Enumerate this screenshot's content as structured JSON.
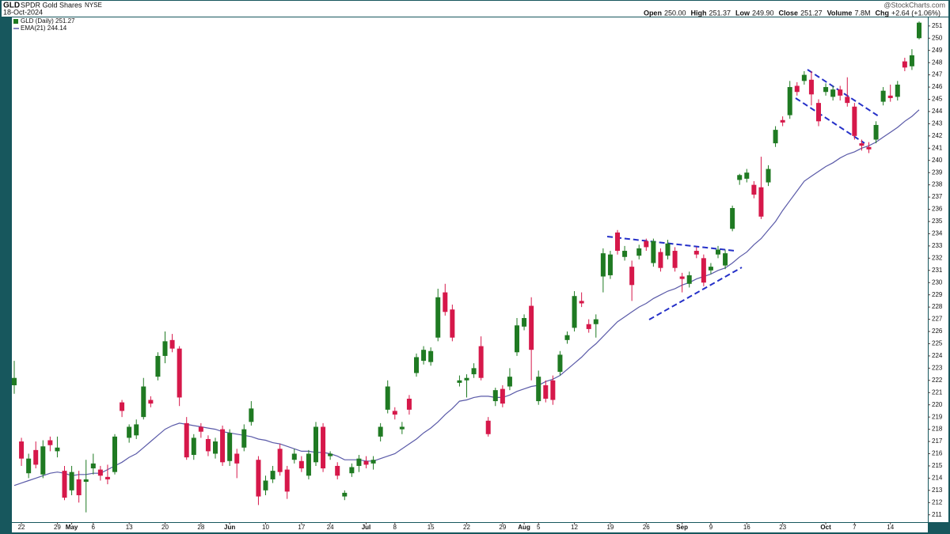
{
  "chart_data": {
    "type": "candlestick",
    "title": "GLD",
    "subtitle": "SPDR Gold Shares",
    "exchange": "NYSE",
    "date": "18-Oct-2024",
    "source": "@StockCharts.com",
    "quote": [
      {
        "label": "Open",
        "value": "250.00"
      },
      {
        "label": "High",
        "value": "251.37"
      },
      {
        "label": "Low",
        "value": "249.90"
      },
      {
        "label": "Close",
        "value": "251.27"
      },
      {
        "label": "Volume",
        "value": "7.8M"
      },
      {
        "label": "Chg",
        "value": "+2.64 (+1.06%)"
      }
    ],
    "categories": [
      null,
      "22",
      null,
      null,
      null,
      null,
      "29",
      null,
      "May",
      null,
      null,
      "6",
      null,
      null,
      null,
      null,
      "13",
      null,
      null,
      null,
      null,
      "20",
      null,
      null,
      null,
      null,
      "28",
      null,
      null,
      null,
      "Jun",
      null,
      null,
      null,
      null,
      "10",
      null,
      null,
      null,
      null,
      "17",
      null,
      null,
      null,
      "24",
      null,
      null,
      null,
      null,
      "Jul",
      null,
      null,
      null,
      "8",
      null,
      null,
      null,
      null,
      "15",
      null,
      null,
      null,
      null,
      "22",
      null,
      null,
      null,
      null,
      "29",
      null,
      null,
      "Aug",
      null,
      "5",
      null,
      null,
      null,
      null,
      "12",
      null,
      null,
      null,
      null,
      "19",
      null,
      null,
      null,
      null,
      "26",
      null,
      null,
      null,
      null,
      "Sep",
      null,
      null,
      null,
      "9",
      null,
      null,
      null,
      null,
      "16",
      null,
      null,
      null,
      null,
      "23",
      null,
      null,
      null,
      null,
      null,
      "Oct",
      null,
      null,
      null,
      "7",
      null,
      null,
      null,
      null,
      "14",
      null,
      null,
      null,
      null
    ],
    "series": [
      {
        "name": "GLD (Daily) 251.27",
        "type": "candlestick",
        "up_color": "#1f7a22",
        "down_color": "#d6184a",
        "open": [
          221.6,
          217.0,
          214.4,
          216.3,
          214.3,
          217.1,
          216.2,
          214.6,
          213.0,
          213.9,
          213.7,
          214.8,
          214.7,
          214.1,
          214.5,
          220.2,
          217.3,
          217.5,
          219.0,
          220.4,
          222.3,
          224.0,
          225.3,
          224.6,
          218.5,
          215.9,
          218.2,
          217.2,
          216.0,
          218.0,
          215.4,
          216.0,
          216.5,
          218.6,
          215.5,
          213.0,
          213.9,
          216.4,
          214.7,
          215.5,
          215.4,
          214.2,
          215.3,
          218.2,
          215.8,
          215.0,
          212.5,
          214.4,
          215.0,
          215.4,
          215.2,
          217.4,
          219.6,
          219.5,
          218.0,
          220.5,
          222.6,
          223.6,
          223.5,
          225.5,
          229.2,
          227.8,
          221.8,
          222.0,
          222.5,
          224.8,
          218.7,
          220.3,
          221.3,
          221.5,
          224.3,
          226.4,
          228.1,
          220.3,
          221.6,
          222.0,
          222.7,
          225.3,
          226.3,
          228.5,
          226.6,
          226.6,
          230.5,
          230.6,
          234.1,
          232.1,
          231.3,
          232.2,
          233.4,
          231.6,
          232.5,
          232.2,
          232.6,
          230.5,
          229.9,
          232.6,
          232.0,
          231.0,
          232.3,
          231.4,
          234.4,
          238.4,
          238.5,
          238.0,
          237.8,
          238.2,
          241.4,
          243.3,
          243.7,
          246.1,
          246.5,
          246.6,
          244.7,
          245.6,
          245.2,
          245.8,
          245.2,
          244.4,
          241.4,
          241.1,
          241.7,
          244.8,
          245.3,
          245.2,
          248.1,
          247.7,
          250.0
        ],
        "high": [
          223.6,
          217.3,
          216.0,
          217.0,
          217.1,
          217.4,
          217.4,
          215.0,
          215.0,
          214.6,
          215.5,
          216.0,
          215.0,
          215.1,
          217.6,
          220.4,
          218.4,
          218.8,
          222.2,
          220.7,
          224.3,
          226.0,
          225.8,
          224.8,
          219.0,
          217.6,
          218.5,
          217.5,
          217.3,
          218.3,
          218.0,
          216.4,
          218.4,
          220.3,
          215.8,
          214.2,
          215.0,
          216.8,
          215.0,
          216.4,
          215.8,
          216.3,
          218.6,
          218.5,
          216.2,
          215.3,
          213.0,
          215.2,
          215.9,
          215.8,
          215.8,
          218.5,
          222.0,
          219.8,
          218.6,
          220.8,
          224.2,
          224.8,
          224.7,
          229.5,
          229.9,
          228.2,
          222.4,
          222.5,
          223.4,
          225.6,
          219.0,
          221.4,
          221.6,
          223.0,
          227.1,
          227.4,
          228.8,
          222.8,
          222.0,
          222.4,
          224.4,
          226.0,
          229.3,
          229.2,
          227.0,
          227.4,
          232.8,
          232.6,
          234.3,
          233.0,
          231.8,
          233.1,
          233.6,
          233.6,
          232.8,
          233.5,
          232.9,
          230.8,
          230.9,
          232.9,
          232.3,
          231.6,
          233.0,
          232.7,
          236.3,
          238.9,
          239.3,
          238.3,
          240.3,
          239.6,
          242.8,
          243.6,
          246.5,
          246.4,
          247.3,
          247.3,
          245.0,
          246.3,
          246.1,
          246.1,
          246.8,
          244.7,
          241.7,
          241.5,
          243.2,
          246.0,
          246.2,
          246.5,
          248.4,
          249.1,
          251.37
        ],
        "low": [
          220.9,
          215.0,
          214.0,
          214.8,
          214.0,
          216.2,
          215.7,
          212.2,
          212.6,
          212.0,
          211.2,
          214.3,
          213.8,
          213.5,
          214.3,
          219.0,
          216.9,
          217.2,
          218.8,
          219.8,
          222.0,
          223.4,
          224.3,
          219.9,
          215.5,
          215.5,
          217.3,
          215.8,
          215.6,
          215.0,
          215.0,
          214.0,
          216.2,
          218.3,
          211.8,
          212.6,
          213.6,
          214.2,
          212.3,
          215.2,
          214.5,
          213.9,
          215.0,
          214.5,
          215.5,
          213.9,
          212.2,
          214.1,
          214.5,
          214.8,
          214.7,
          217.0,
          219.3,
          218.8,
          217.6,
          219.2,
          222.3,
          223.3,
          223.2,
          225.2,
          227.3,
          225.2,
          221.5,
          220.6,
          222.2,
          222.0,
          217.4,
          219.9,
          219.8,
          221.2,
          224.0,
          226.1,
          222.0,
          220.0,
          220.2,
          220.0,
          222.4,
          225.0,
          226.0,
          228.0,
          225.9,
          225.5,
          229.2,
          230.3,
          232.3,
          231.8,
          228.5,
          231.9,
          232.6,
          231.3,
          230.9,
          231.9,
          230.9,
          229.2,
          229.6,
          232.0,
          229.7,
          230.7,
          232.0,
          231.1,
          234.2,
          238.0,
          238.2,
          236.9,
          235.2,
          237.9,
          241.1,
          242.8,
          243.4,
          245.3,
          246.2,
          244.5,
          242.8,
          245.3,
          244.9,
          244.9,
          244.4,
          241.7,
          240.8,
          240.6,
          241.4,
          244.5,
          244.8,
          244.9,
          247.3,
          247.4,
          249.9
        ],
        "close": [
          222.2,
          215.6,
          215.6,
          215.1,
          216.6,
          216.7,
          216.5,
          212.4,
          214.5,
          212.6,
          213.9,
          215.2,
          214.2,
          213.9,
          217.4,
          219.5,
          218.2,
          218.4,
          221.5,
          220.1,
          224.0,
          225.2,
          224.6,
          220.6,
          215.7,
          217.3,
          217.8,
          216.2,
          217.0,
          215.3,
          217.7,
          215.2,
          218.0,
          219.7,
          212.5,
          213.8,
          214.6,
          214.5,
          212.9,
          216.0,
          214.8,
          216.0,
          218.2,
          214.8,
          216.0,
          214.2,
          212.8,
          214.9,
          215.6,
          215.1,
          215.5,
          218.2,
          221.5,
          219.2,
          218.2,
          219.6,
          223.9,
          224.5,
          224.4,
          228.8,
          227.6,
          225.5,
          222.0,
          222.2,
          223.0,
          222.2,
          217.6,
          221.2,
          220.1,
          222.3,
          226.5,
          227.1,
          224.5,
          222.3,
          220.5,
          220.4,
          224.1,
          225.7,
          228.9,
          228.3,
          226.2,
          227.0,
          232.4,
          232.3,
          232.6,
          232.6,
          229.8,
          232.8,
          232.9,
          233.4,
          231.2,
          233.2,
          231.2,
          230.3,
          230.6,
          232.3,
          230.0,
          231.3,
          232.7,
          232.4,
          236.1,
          238.8,
          239.0,
          237.2,
          235.4,
          239.3,
          242.5,
          243.1,
          246.0,
          245.6,
          247.0,
          245.4,
          243.2,
          246.0,
          245.8,
          245.3,
          244.7,
          242.0,
          241.2,
          240.9,
          242.9,
          245.7,
          245.1,
          246.2,
          247.6,
          248.6,
          251.27
        ]
      },
      {
        "name": "EMA(21) 244.14",
        "type": "line",
        "color": "#5a5aa8",
        "values": [
          213.4,
          213.6,
          213.8,
          214.0,
          214.2,
          214.4,
          214.5,
          214.4,
          214.2,
          214.3,
          214.3,
          214.4,
          214.4,
          214.7,
          215.0,
          215.3,
          215.7,
          216.0,
          216.5,
          217.0,
          217.5,
          218.0,
          218.3,
          218.5,
          218.4,
          218.3,
          218.2,
          218.1,
          218.0,
          217.8,
          217.7,
          217.6,
          217.5,
          217.4,
          217.2,
          217.1,
          216.9,
          216.8,
          216.6,
          216.4,
          216.2,
          216.2,
          216.1,
          216.1,
          216.0,
          215.8,
          215.5,
          215.5,
          215.5,
          215.4,
          215.4,
          215.6,
          215.8,
          216.0,
          216.4,
          216.8,
          217.2,
          217.7,
          218.1,
          218.6,
          219.2,
          219.7,
          220.3,
          220.4,
          220.6,
          220.7,
          220.7,
          220.6,
          220.6,
          220.8,
          221.1,
          221.3,
          221.5,
          221.6,
          221.9,
          222.1,
          222.4,
          222.9,
          223.4,
          223.9,
          224.5,
          225.0,
          225.6,
          226.2,
          226.8,
          227.2,
          227.6,
          228.0,
          228.3,
          228.7,
          229.0,
          229.3,
          229.5,
          229.8,
          230.0,
          230.3,
          230.5,
          230.7,
          231.0,
          231.2,
          231.6,
          232.1,
          232.5,
          233.1,
          233.6,
          234.3,
          235.0,
          235.9,
          236.7,
          237.5,
          238.3,
          238.7,
          239.1,
          239.5,
          239.8,
          240.2,
          240.5,
          240.7,
          241.0,
          241.2,
          241.5,
          241.9,
          242.3,
          242.7,
          243.2,
          243.6,
          244.14
        ]
      }
    ],
    "ylim": [
      210.4,
      251.7
    ],
    "yticks": [
      211,
      212,
      213,
      214,
      215,
      216,
      217,
      218,
      219,
      220,
      221,
      222,
      223,
      224,
      225,
      226,
      227,
      228,
      229,
      230,
      231,
      232,
      233,
      234,
      235,
      236,
      237,
      238,
      239,
      240,
      241,
      242,
      243,
      244,
      245,
      246,
      247,
      248,
      249,
      250,
      251
    ],
    "grid": false
  }
}
